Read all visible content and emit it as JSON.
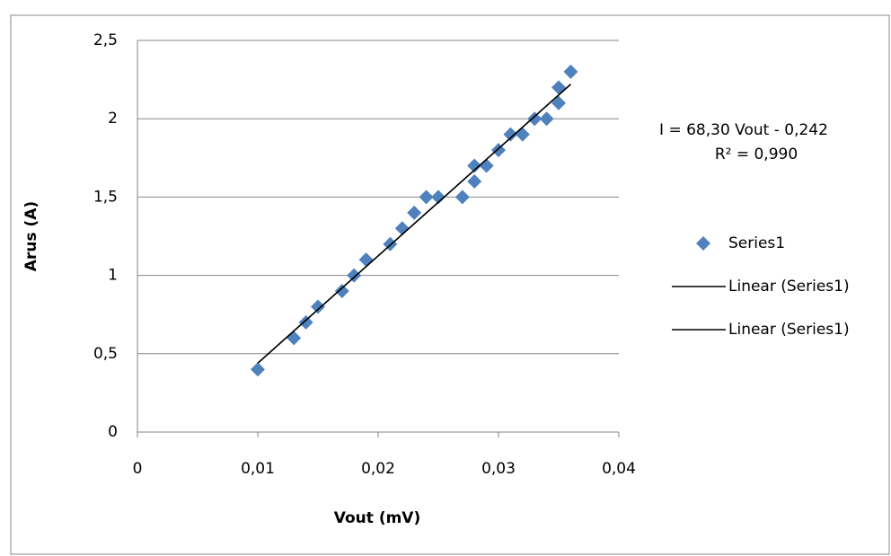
{
  "chart_data": {
    "type": "scatter",
    "x_label": "Vout (mV)",
    "y_label": "Arus (A)",
    "xlim": [
      0,
      0.04
    ],
    "ylim": [
      0,
      2.5
    ],
    "xticks": [
      0,
      {
        "value": 0.01,
        "label": "0,01"
      },
      {
        "value": 0.02,
        "label": "0,02"
      },
      {
        "value": 0.03,
        "label": "0,03"
      },
      {
        "value": 0.04,
        "label": "0,04"
      }
    ],
    "yticks": [
      0,
      {
        "value": 0.5,
        "label": "0,5"
      },
      1,
      {
        "value": 1.5,
        "label": "1,5"
      },
      2,
      {
        "value": 2.5,
        "label": "2,5"
      }
    ],
    "grid": true,
    "legend": "right",
    "annotations": [
      "I = 68,30 Vout - 0,242",
      "R² = 0,990"
    ],
    "series": [
      {
        "name": "Series1",
        "type": "scatter",
        "color": "#4f81bd",
        "x": [
          0.01,
          0.013,
          0.014,
          0.015,
          0.017,
          0.018,
          0.019,
          0.021,
          0.022,
          0.023,
          0.024,
          0.025,
          0.027,
          0.028,
          0.028,
          0.029,
          0.03,
          0.031,
          0.032,
          0.033,
          0.034,
          0.035,
          0.035,
          0.036
        ],
        "values": [
          0.4,
          0.6,
          0.7,
          0.8,
          0.9,
          1.0,
          1.1,
          1.2,
          1.3,
          1.4,
          1.5,
          1.5,
          1.5,
          1.6,
          1.7,
          1.7,
          1.8,
          1.9,
          1.9,
          2.0,
          2.0,
          2.1,
          2.2,
          2.3
        ]
      },
      {
        "name": "Linear (Series1)",
        "type": "line",
        "color": "#000000",
        "x": [
          0.01,
          0.036
        ],
        "values": [
          0.44,
          2.22
        ]
      },
      {
        "name": "Linear (Series1)",
        "type": "line",
        "color": "#000000",
        "x": [
          0.01,
          0.036
        ],
        "values": [
          0.44,
          2.22
        ]
      }
    ]
  }
}
